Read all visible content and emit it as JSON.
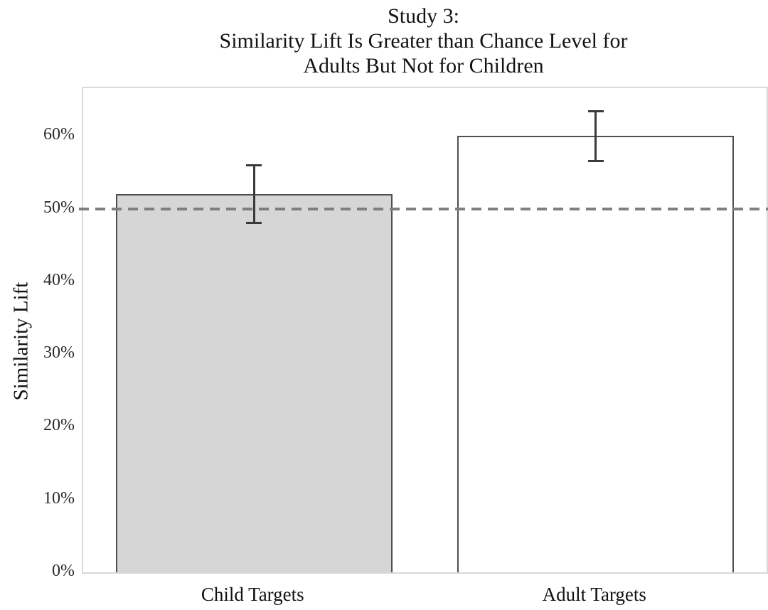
{
  "chart_data": {
    "type": "bar",
    "title": "Study 3: Similarity Lift Is Greater than Chance Level for Adults But Not for Children",
    "title_lines": [
      "Study 3:",
      "Similarity Lift Is Greater than Chance Level for",
      "Adults But Not for Children"
    ],
    "ylabel": "Similarity Lift",
    "xlabel": "",
    "categories": [
      "Child Targets",
      "Adult Targets"
    ],
    "values": [
      52,
      60
    ],
    "error_bars_plus_minus": [
      4,
      3.5
    ],
    "bar_fills": [
      "#d6d6d6",
      "#ffffff"
    ],
    "bar_border_color": "#4f4f4f",
    "error_bar_color": "#3a3a3a",
    "reference_line": {
      "value": 50,
      "style": "dashed",
      "color": "#7f7f7f"
    },
    "yticks": [
      0,
      10,
      20,
      30,
      40,
      50,
      60
    ],
    "ytick_labels": [
      "0%",
      "10%",
      "20%",
      "30%",
      "40%",
      "50%",
      "60%"
    ],
    "ylim": [
      0,
      66.6
    ],
    "grid": false,
    "legend": false
  }
}
